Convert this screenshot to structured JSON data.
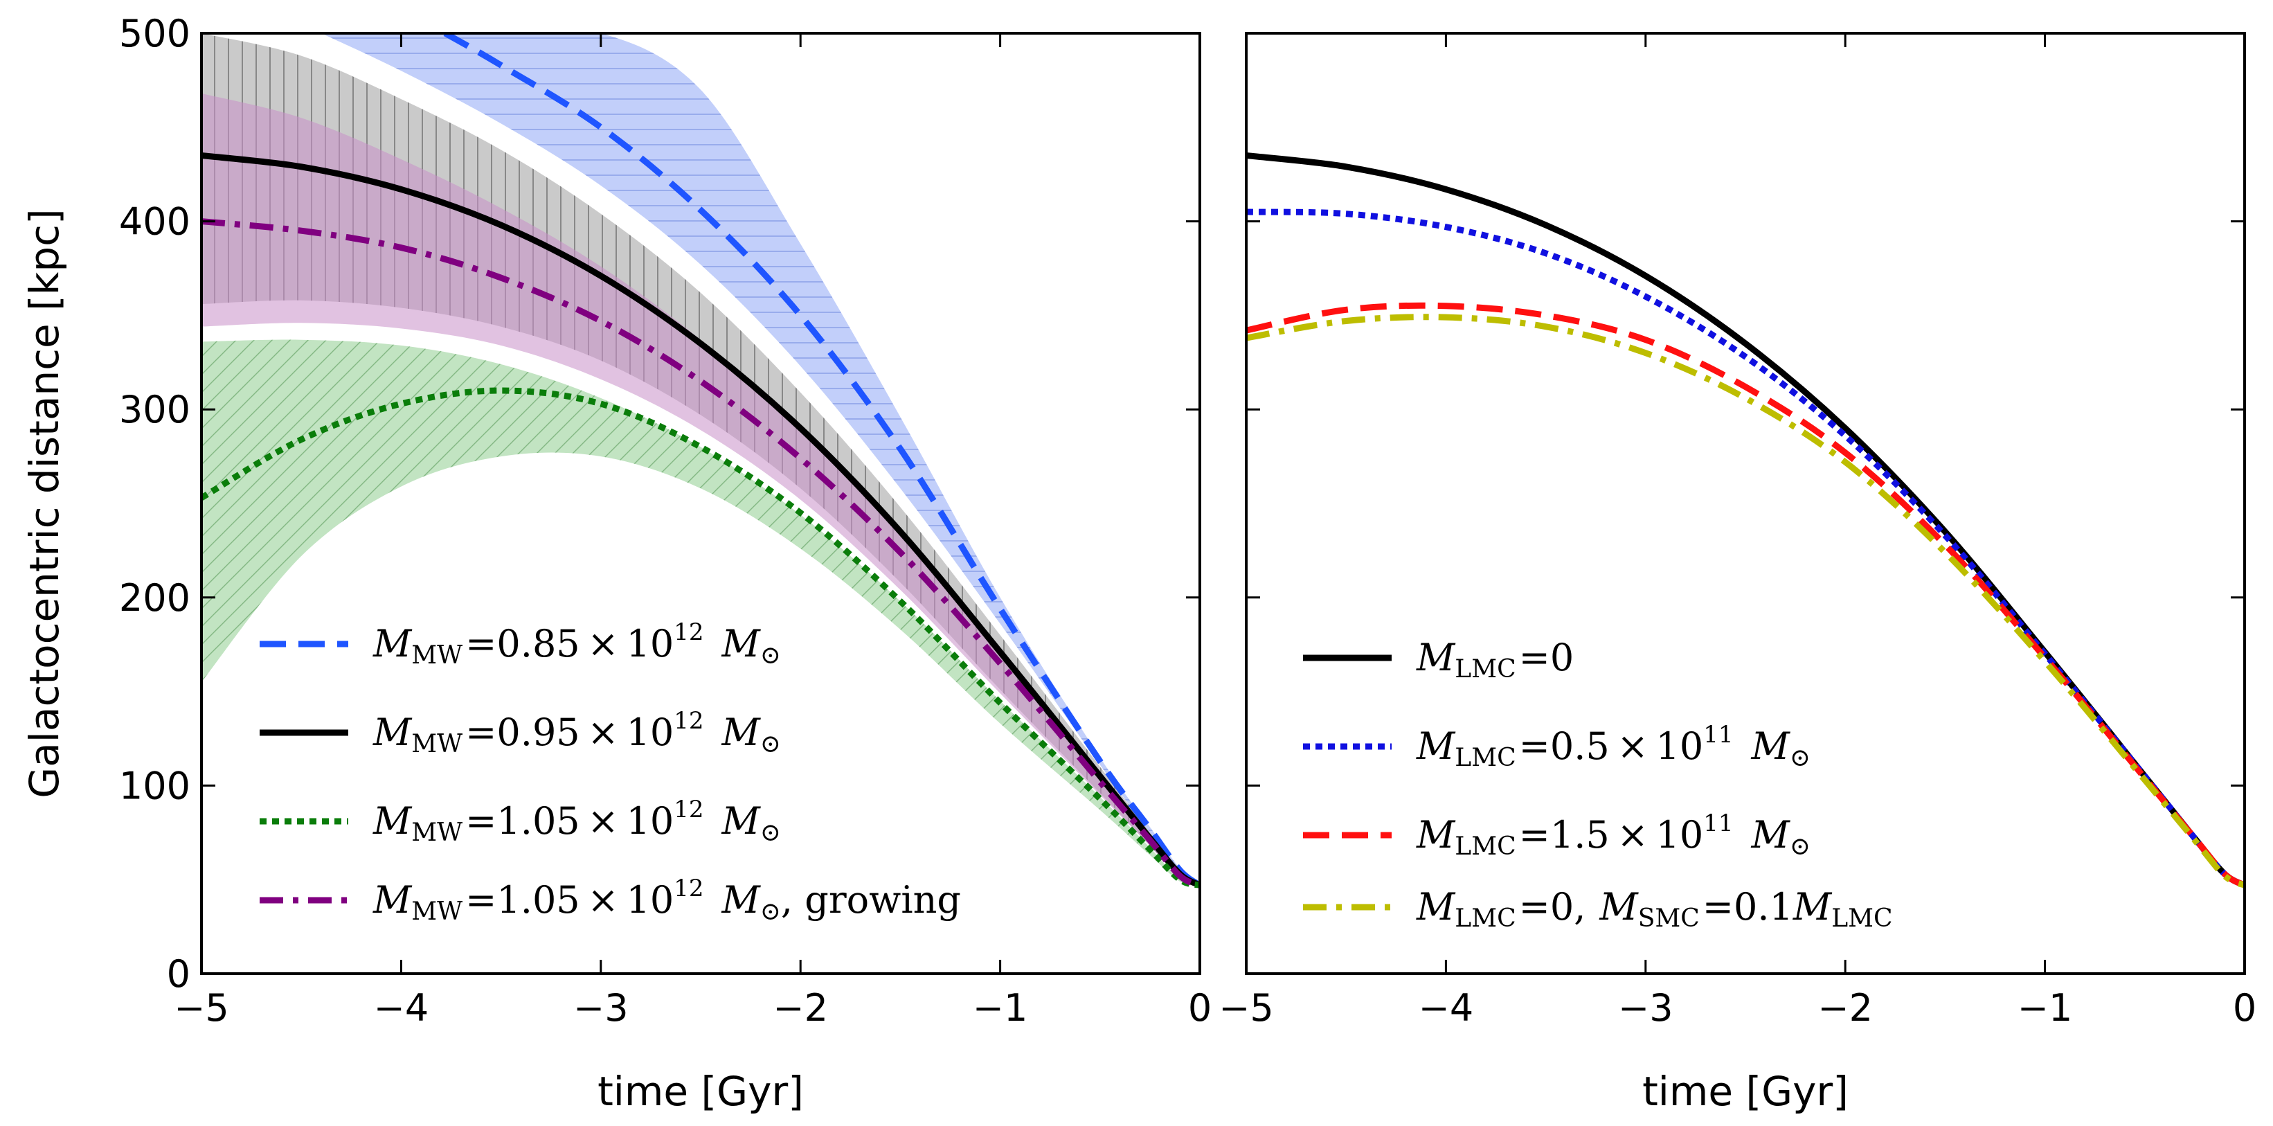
{
  "chart_data": [
    {
      "type": "line",
      "panel": "left",
      "xlabel": "time [Gyr]",
      "ylabel": "Galactocentric distance [kpc]",
      "xlim": [
        -5,
        0
      ],
      "ylim": [
        0,
        500
      ],
      "xticks": [
        -5,
        -4,
        -3,
        -2,
        -1,
        0
      ],
      "xtick_labels": [
        "−5",
        "−4",
        "−3",
        "−2",
        "−1",
        "0"
      ],
      "yticks": [
        0,
        100,
        200,
        300,
        400,
        500
      ],
      "ytick_labels": [
        "0",
        "100",
        "200",
        "300",
        "400",
        "500"
      ],
      "legend_position": "lower-left",
      "bands": [
        {
          "name": "green band",
          "color": "#8fce8f",
          "hatch": "diagonal",
          "x": [
            -5,
            -4.5,
            -4,
            -3.5,
            -3,
            -2.5,
            -2,
            -1.5,
            -1,
            -0.5,
            -0.25,
            -0.1,
            0
          ],
          "upper": [
            336,
            337,
            334,
            324,
            306,
            280,
            244,
            198,
            145,
            94,
            67,
            50,
            47
          ],
          "lower": [
            155,
            222,
            259,
            275,
            275,
            258,
            226,
            183,
            133,
            87,
            63,
            49,
            47
          ]
        },
        {
          "name": "grey band",
          "color": "#9e9e9e",
          "hatch": "vertical",
          "x": [
            -5,
            -4.5,
            -4,
            -3.5,
            -3,
            -2.5,
            -2,
            -1.5,
            -1,
            -0.5,
            -0.25,
            -0.1,
            0
          ],
          "upper": [
            500,
            488,
            465,
            438,
            404,
            362,
            309,
            248,
            180,
            110,
            75,
            54,
            47
          ],
          "lower": [
            356,
            358,
            354,
            344,
            326,
            297,
            258,
            208,
            151,
            96,
            68,
            51,
            47
          ]
        },
        {
          "name": "pink band",
          "color": "#c98fc9",
          "hatch": "none",
          "x": [
            -5,
            -4.5,
            -4,
            -3.5,
            -3,
            -2.5,
            -2,
            -1.5,
            -1,
            -0.5,
            -0.25,
            -0.1,
            0
          ],
          "upper": [
            468,
            455,
            433,
            407,
            376,
            337,
            289,
            234,
            171,
            106,
            73,
            53,
            47
          ],
          "lower": [
            344,
            346,
            343,
            334,
            316,
            289,
            252,
            204,
            149,
            95,
            68,
            51,
            47
          ]
        },
        {
          "name": "blue band",
          "color": "#8fa8f5",
          "hatch": "horizontal",
          "x": [
            -4.4,
            -4,
            -3.5,
            -3,
            -2.5,
            -2,
            -1.5,
            -1,
            -0.5,
            -0.25,
            -0.1,
            0
          ],
          "upper": [
            500,
            500,
            500,
            500,
            470,
            388,
            296,
            200,
            115,
            78,
            56,
            47
          ],
          "lower": [
            500,
            480,
            452,
            419,
            377,
            323,
            258,
            186,
            111,
            75,
            54,
            47
          ]
        }
      ],
      "series": [
        {
          "name": "M_MW = 0.85 × 10^12 M_⊙",
          "color": "#1f55ff",
          "dash": "dashed",
          "x": [
            -3.78,
            -3.5,
            -3,
            -2.5,
            -2,
            -1.5,
            -1,
            -0.5,
            -0.25,
            -0.1,
            0
          ],
          "y": [
            500,
            483,
            450,
            406,
            350,
            279,
            194,
            113,
            77,
            55,
            47
          ]
        },
        {
          "name": "M_MW = 0.95 × 10^12 M_⊙",
          "color": "#000000",
          "dash": "solid",
          "x": [
            -5,
            -4.5,
            -4,
            -3.5,
            -3,
            -2.5,
            -2,
            -1.5,
            -1,
            -0.5,
            -0.25,
            -0.1,
            0
          ],
          "y": [
            435,
            429,
            417,
            398,
            371,
            335,
            290,
            235,
            171,
            105,
            72,
            53,
            47
          ]
        },
        {
          "name": "M_MW = 1.05 × 10^12 M_⊙",
          "color": "#0a7d0a",
          "dash": "dotted",
          "x": [
            -5,
            -4.5,
            -4,
            -3.5,
            -3,
            -2.5,
            -2,
            -1.5,
            -1,
            -0.5,
            -0.25,
            -0.1,
            0
          ],
          "y": [
            253,
            284,
            303,
            310,
            303,
            280,
            245,
            198,
            144,
            93,
            66,
            50,
            47
          ]
        },
        {
          "name": "M_MW = 1.05 × 10^12 M_⊙, growing",
          "color": "#800080",
          "dash": "dashdot",
          "x": [
            -5,
            -4.5,
            -4,
            -3.5,
            -3,
            -2.5,
            -2,
            -1.5,
            -1,
            -0.5,
            -0.25,
            -0.1,
            0
          ],
          "y": [
            400,
            395,
            386,
            370,
            347,
            315,
            274,
            224,
            165,
            102,
            71,
            52,
            47
          ]
        }
      ]
    },
    {
      "type": "line",
      "panel": "right",
      "xlabel": "time [Gyr]",
      "ylabel": "",
      "xlim": [
        -5,
        0
      ],
      "ylim": [
        0,
        500
      ],
      "xticks": [
        -5,
        -4,
        -3,
        -2,
        -1,
        0
      ],
      "xtick_labels": [
        "−5",
        "−4",
        "−3",
        "−2",
        "−1",
        "0"
      ],
      "legend_position": "lower-left",
      "series": [
        {
          "name": "M_LMC = 0",
          "color": "#000000",
          "dash": "solid",
          "x": [
            -5,
            -4.5,
            -4,
            -3.5,
            -3,
            -2.5,
            -2,
            -1.5,
            -1,
            -0.5,
            -0.25,
            -0.1,
            0
          ],
          "y": [
            435,
            429,
            417,
            398,
            371,
            335,
            290,
            235,
            171,
            105,
            72,
            53,
            47
          ]
        },
        {
          "name": "M_LMC = 0.5 × 10^11 M_⊙",
          "color": "#1010e0",
          "dash": "dotted",
          "x": [
            -5,
            -4.5,
            -4,
            -3.5,
            -3,
            -2.5,
            -2,
            -1.5,
            -1,
            -0.5,
            -0.25,
            -0.1,
            0
          ],
          "y": [
            405,
            404,
            397,
            383,
            360,
            328,
            286,
            233,
            170,
            105,
            72,
            53,
            47
          ]
        },
        {
          "name": "M_LMC = 1.5 × 10^11 M_⊙",
          "color": "#ff1010",
          "dash": "dashed",
          "x": [
            -5,
            -4.5,
            -4,
            -3.5,
            -3,
            -2.5,
            -2,
            -1.5,
            -1,
            -0.5,
            -0.25,
            -0.1,
            0
          ],
          "y": [
            342,
            353,
            355,
            350,
            337,
            312,
            277,
            228,
            168,
            104,
            72,
            53,
            47
          ]
        },
        {
          "name": "M_LMC = 0, M_SMC = 0.1 M_LMC",
          "color": "#bdbd00",
          "dash": "dashdot",
          "x": [
            -5,
            -4.5,
            -4,
            -3.5,
            -3,
            -2.5,
            -2,
            -1.5,
            -1,
            -0.5,
            -0.25,
            -0.1,
            0
          ],
          "y": [
            338,
            347,
            349,
            344,
            330,
            306,
            272,
            224,
            166,
            103,
            71,
            52,
            47
          ]
        }
      ]
    }
  ],
  "legend_text": {
    "left": [
      {
        "sym": "M",
        "sub": "MW",
        "mid": "=0.85 × 10",
        "sup": "12",
        "tail": "M",
        "tailsym": "⊙",
        "extra": ""
      },
      {
        "sym": "M",
        "sub": "MW",
        "mid": "=0.95 × 10",
        "sup": "12",
        "tail": "M",
        "tailsym": "⊙",
        "extra": ""
      },
      {
        "sym": "M",
        "sub": "MW",
        "mid": "=1.05 × 10",
        "sup": "12",
        "tail": "M",
        "tailsym": "⊙",
        "extra": ""
      },
      {
        "sym": "M",
        "sub": "MW",
        "mid": "=1.05 × 10",
        "sup": "12",
        "tail": "M",
        "tailsym": "⊙",
        "extra": ", growing"
      }
    ],
    "right": [
      {
        "sym": "M",
        "sub": "LMC",
        "mid": "=0",
        "sup": "",
        "tail": "",
        "tailsym": "",
        "extra": ""
      },
      {
        "sym": "M",
        "sub": "LMC",
        "mid": "=0.5 × 10",
        "sup": "11",
        "tail": "M",
        "tailsym": "⊙",
        "extra": ""
      },
      {
        "sym": "M",
        "sub": "LMC",
        "mid": "=1.5 × 10",
        "sup": "11",
        "tail": "M",
        "tailsym": "⊙",
        "extra": ""
      },
      {
        "sym": "M",
        "sub": "LMC",
        "mid": "=0,",
        "sup": "",
        "tail": "M",
        "tailsub": "SMC",
        "tailmid": "=0.1",
        "tail2": "M",
        "tail2sub": "LMC",
        "extra": ""
      }
    ]
  }
}
